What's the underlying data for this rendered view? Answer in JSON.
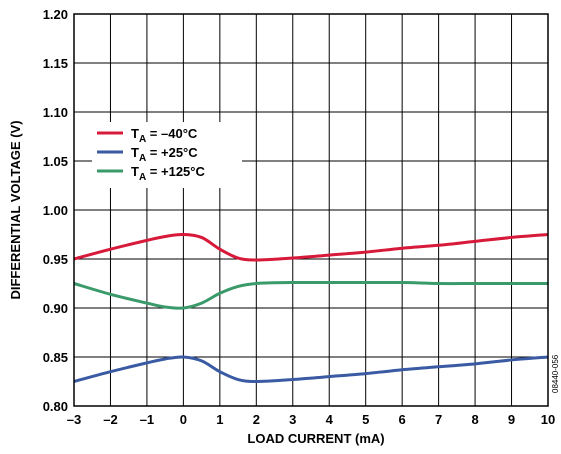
{
  "chart_data": {
    "type": "line",
    "xlabel": "LOAD CURRENT (mA)",
    "ylabel": "DIFFERENTIAL VOLTAGE (V)",
    "xlim": [
      -3,
      10
    ],
    "ylim": [
      0.8,
      1.2
    ],
    "x_ticks": [
      "–3",
      "–2",
      "–1",
      "0",
      "1",
      "2",
      "3",
      "4",
      "5",
      "6",
      "7",
      "8",
      "9",
      "10"
    ],
    "y_ticks": [
      "0.80",
      "0.85",
      "0.90",
      "0.95",
      "1.00",
      "1.05",
      "1.10",
      "1.15",
      "1.20"
    ],
    "grid": true,
    "legend_position": "top-left",
    "figure_code": "08440-056",
    "series": [
      {
        "name_main": "T",
        "name_sub": "A",
        "name_rest": " = –40°C",
        "color": "#d7193a",
        "x": [
          -3,
          -2,
          -1,
          -0.5,
          0,
          0.5,
          1,
          1.5,
          2,
          3,
          4,
          5,
          6,
          7,
          8,
          9,
          10
        ],
        "y": [
          0.95,
          0.96,
          0.969,
          0.973,
          0.975,
          0.972,
          0.96,
          0.951,
          0.949,
          0.951,
          0.954,
          0.957,
          0.961,
          0.964,
          0.968,
          0.972,
          0.975
        ]
      },
      {
        "name_main": "T",
        "name_sub": "A",
        "name_rest": " = +25°C",
        "color": "#3a5aa3",
        "x": [
          -3,
          -2,
          -1,
          -0.5,
          0,
          0.5,
          1,
          1.5,
          2,
          3,
          4,
          5,
          6,
          7,
          8,
          9,
          10
        ],
        "y": [
          0.825,
          0.835,
          0.844,
          0.848,
          0.85,
          0.846,
          0.835,
          0.827,
          0.825,
          0.827,
          0.83,
          0.833,
          0.837,
          0.84,
          0.843,
          0.847,
          0.85
        ]
      },
      {
        "name_main": "T",
        "name_sub": "A",
        "name_rest": " = +125°C",
        "color": "#3a9a6a",
        "x": [
          -3,
          -2,
          -1,
          -0.5,
          0,
          0.5,
          1,
          1.5,
          2,
          3,
          4,
          5,
          6,
          7,
          8,
          9,
          10
        ],
        "y": [
          0.925,
          0.914,
          0.905,
          0.901,
          0.9,
          0.905,
          0.915,
          0.922,
          0.925,
          0.926,
          0.926,
          0.926,
          0.926,
          0.925,
          0.925,
          0.925,
          0.925
        ]
      }
    ]
  }
}
